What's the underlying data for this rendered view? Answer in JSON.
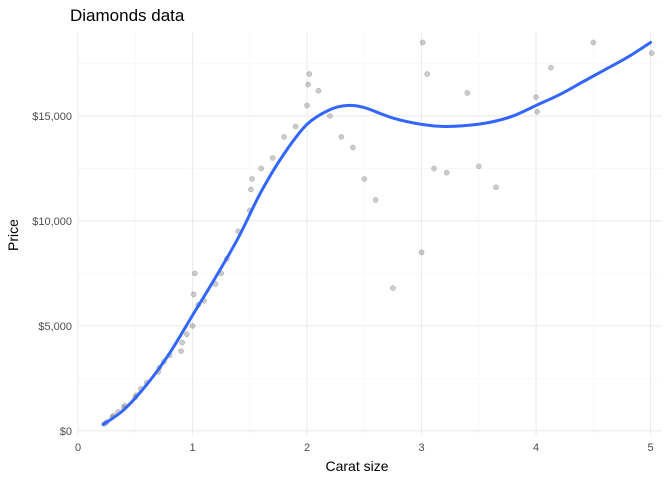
{
  "chart_data": {
    "type": "scatter",
    "title": "Diamonds data",
    "xlabel": "Carat size",
    "ylabel": "Price",
    "xlim": [
      0,
      5.1
    ],
    "ylim": [
      -200,
      19000
    ],
    "x_ticks": [
      0,
      1,
      2,
      3,
      4,
      5
    ],
    "x_tick_labels": [
      "0",
      "1",
      "2",
      "3",
      "4",
      "5"
    ],
    "y_ticks": [
      0,
      5000,
      10000,
      15000
    ],
    "y_tick_labels": [
      "$0",
      "$5,000",
      "$10,000",
      "$15,000"
    ],
    "grid": true,
    "legend": "none",
    "point_color": "#000000",
    "point_alpha": 0.2,
    "smooth_color": "#3366ff",
    "series": [
      {
        "kind": "points",
        "x": [
          0.23,
          0.25,
          0.3,
          0.31,
          0.35,
          0.4,
          0.41,
          0.5,
          0.51,
          0.55,
          0.6,
          0.7,
          0.71,
          0.75,
          0.8,
          0.9,
          0.91,
          0.95,
          1.0,
          1.01,
          1.02,
          1.05,
          1.1,
          1.2,
          1.25,
          1.3,
          1.4,
          1.5,
          1.51,
          1.52,
          1.6,
          1.7,
          1.8,
          1.9,
          2.0,
          2.01,
          2.02,
          2.1,
          2.2,
          2.3,
          2.4,
          2.5,
          2.6,
          2.75,
          3.0,
          3.01,
          3.05,
          3.11,
          3.22,
          3.4,
          3.5,
          3.65,
          4.0,
          4.01,
          4.13,
          4.5,
          5.01
        ],
        "y": [
          330,
          420,
          650,
          720,
          900,
          1100,
          1200,
          1600,
          1700,
          2000,
          2300,
          2800,
          3000,
          3300,
          3600,
          3800,
          4200,
          4600,
          5000,
          6500,
          7500,
          6000,
          6200,
          7000,
          7500,
          8200,
          9500,
          10500,
          11500,
          12000,
          12500,
          13000,
          14000,
          14500,
          15500,
          16500,
          17000,
          16200,
          15000,
          14000,
          13500,
          12000,
          11000,
          6800,
          8500,
          18500,
          17000,
          12500,
          12300,
          16100,
          12600,
          11600,
          15900,
          15200,
          17300,
          18500,
          18000
        ]
      },
      {
        "kind": "smooth",
        "x": [
          0.22,
          0.4,
          0.6,
          0.8,
          1.0,
          1.2,
          1.4,
          1.6,
          1.8,
          2.0,
          2.2,
          2.35,
          2.5,
          2.75,
          3.0,
          3.2,
          3.4,
          3.6,
          3.8,
          4.0,
          4.2,
          4.4,
          4.6,
          4.8,
          5.0
        ],
        "y": [
          300,
          1000,
          2200,
          3700,
          5500,
          7300,
          9200,
          11400,
          13200,
          14600,
          15300,
          15500,
          15400,
          14900,
          14600,
          14500,
          14550,
          14700,
          15000,
          15500,
          16000,
          16600,
          17200,
          17800,
          18500
        ]
      }
    ]
  }
}
